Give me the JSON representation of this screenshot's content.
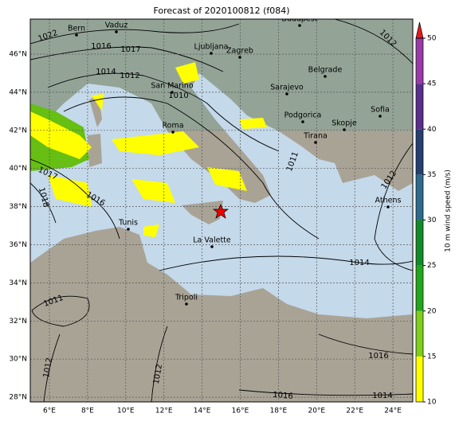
{
  "title": "Forecast of 2020100812 (f084)",
  "lon_labels": [
    "6°E",
    "8°E",
    "10°E",
    "12°E",
    "14°E",
    "16°E",
    "18°E",
    "20°E",
    "22°E",
    "24°E"
  ],
  "lat_labels": [
    "46°N",
    "44°N",
    "42°N",
    "40°N",
    "38°N",
    "36°N",
    "34°N",
    "32°N",
    "30°N",
    "28°N"
  ],
  "cities": [
    "Bern",
    "Vaduz",
    "Budapest",
    "Ljubljana",
    "Zagreb",
    "Belgrade",
    "Sarajevo",
    "San Marino",
    "Roma",
    "Podgorica",
    "Skopje",
    "Sofia",
    "Tirana",
    "Athens",
    "Tunis",
    "La Valette",
    "Tripoli"
  ],
  "isobar_labels": [
    1022,
    1016,
    1017,
    1014,
    1012,
    1010,
    1012,
    1011,
    1012,
    1017,
    1018,
    1016,
    1014,
    1011,
    1012,
    1012,
    1016,
    1016,
    1014
  ],
  "colorbar": {
    "label": "10 m wind speed (m/s)",
    "lim": [
      10,
      50
    ],
    "ticks": [
      10,
      15,
      20,
      25,
      30,
      35,
      40,
      45,
      50
    ],
    "colors": [
      "#ffff00",
      "#7fce1a",
      "#22a61c",
      "#138a2a",
      "#2e6a8c",
      "#253f70",
      "#5a2f8e",
      "#9a3aa8"
    ],
    "over_color": "#e31a1c"
  }
}
